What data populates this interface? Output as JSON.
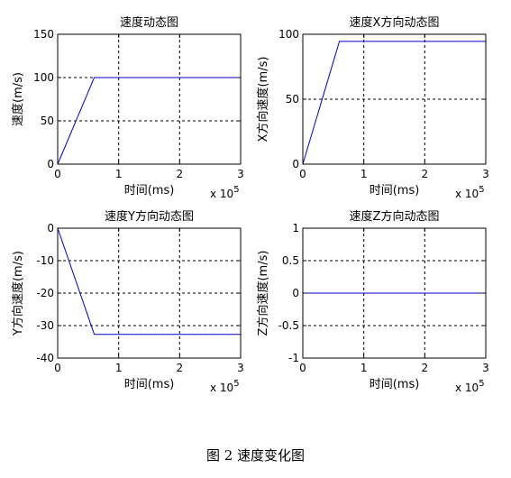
{
  "caption": "图 2  速度变化图",
  "chart_data": [
    {
      "type": "line",
      "title": "速度动态图",
      "xlabel": "时间(ms)",
      "ylabel": "速度(m/s)",
      "x_multiplier_label": "x 10^5",
      "xlim": [
        0,
        3
      ],
      "ylim": [
        0,
        150
      ],
      "xticks": [
        0,
        1,
        2,
        3
      ],
      "yticks": [
        0,
        50,
        100,
        150
      ],
      "grid": true,
      "series": [
        {
          "color": "#0000cc",
          "x": [
            0,
            0.6,
            3
          ],
          "y": [
            0,
            100,
            100
          ]
        }
      ]
    },
    {
      "type": "line",
      "title": "速度X方向动态图",
      "xlabel": "时间(ms)",
      "ylabel": "X方向速度(m/s)",
      "x_multiplier_label": "x 10^5",
      "xlim": [
        0,
        3
      ],
      "ylim": [
        0,
        100
      ],
      "xticks": [
        0,
        1,
        2,
        3
      ],
      "yticks": [
        0,
        50,
        100
      ],
      "grid": true,
      "series": [
        {
          "color": "#0000cc",
          "x": [
            0,
            0.6,
            3
          ],
          "y": [
            0,
            94.5,
            94.5
          ]
        }
      ]
    },
    {
      "type": "line",
      "title": "速度Y方向动态图",
      "xlabel": "时间(ms)",
      "ylabel": "Y方向速度(m/s)",
      "x_multiplier_label": "x 10^5",
      "xlim": [
        0,
        3
      ],
      "ylim": [
        -40,
        0
      ],
      "xticks": [
        0,
        1,
        2,
        3
      ],
      "yticks": [
        -40,
        -30,
        -20,
        -10,
        0
      ],
      "grid": true,
      "series": [
        {
          "color": "#0000cc",
          "x": [
            0,
            0.6,
            3
          ],
          "y": [
            0,
            -32.7,
            -32.7
          ]
        }
      ]
    },
    {
      "type": "line",
      "title": "速度Z方向动态图",
      "xlabel": "时间(ms)",
      "ylabel": "Z方向速度(m/s)",
      "x_multiplier_label": "x 10^5",
      "xlim": [
        0,
        3
      ],
      "ylim": [
        -1,
        1
      ],
      "xticks": [
        0,
        1,
        2,
        3
      ],
      "yticks": [
        -1,
        -0.5,
        0,
        0.5,
        1
      ],
      "grid": true,
      "series": [
        {
          "color": "#0000cc",
          "x": [
            0,
            3
          ],
          "y": [
            0,
            0
          ]
        }
      ]
    }
  ]
}
